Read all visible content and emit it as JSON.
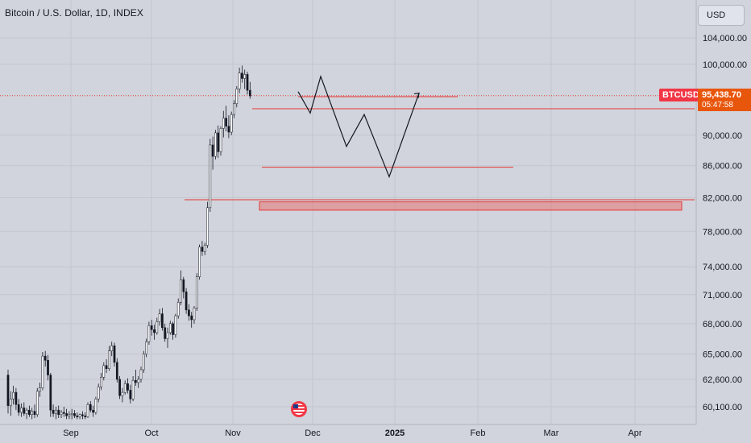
{
  "header": {
    "title": "Bitcoin / U.S. Dollar, 1D, INDEX"
  },
  "currency_button": {
    "label": "USD"
  },
  "price_tag": {
    "ticker": "BTCUSD",
    "price": "95,438.70",
    "countdown": "05:47:58"
  },
  "colors": {
    "background": "#d1d4dc",
    "up": "#ffffff",
    "down": "#131722",
    "line": "#e53935",
    "zone": "#e57373",
    "tag": "#e8560c"
  },
  "price_axis_labels": [
    "104,000.00",
    "100,000.00",
    "90,000.00",
    "86,000.00",
    "82,000.00",
    "78,000.00",
    "74,000.00",
    "71,000.00",
    "68,000.00",
    "65,000.00",
    "62,600.00",
    "60,100.00"
  ],
  "time_axis_labels": [
    "Sep",
    "Oct",
    "Nov",
    "Dec",
    "2025",
    "Feb",
    "Mar",
    "Apr"
  ],
  "icons": {
    "flag": "us-flag-icon"
  },
  "chart_data": {
    "type": "candlestick",
    "title": "Bitcoin / U.S. Dollar, 1D, INDEX",
    "y_axis": {
      "scale": "log",
      "ticks": [
        104000,
        100000,
        90000,
        86000,
        82000,
        78000,
        74000,
        71000,
        68000,
        65000,
        62600,
        60100
      ]
    },
    "x_axis": {
      "ticks": [
        "Sep",
        "Oct",
        "Nov",
        "Dec",
        "2025",
        "Feb",
        "Mar",
        "Apr"
      ]
    },
    "last_price": 95438.7,
    "series": [
      {
        "name": "BTCUSD",
        "ohlc": [
          [
            63000,
            63500,
            59500,
            60200
          ],
          [
            60200,
            61500,
            59300,
            60800
          ],
          [
            60800,
            62000,
            60300,
            61400
          ],
          [
            61400,
            61800,
            59800,
            60300
          ],
          [
            60300,
            60800,
            59300,
            59600
          ],
          [
            59600,
            60400,
            59200,
            60000
          ],
          [
            60000,
            60500,
            59300,
            59500
          ],
          [
            59500,
            60000,
            59000,
            59800
          ],
          [
            59800,
            60200,
            59200,
            59400
          ],
          [
            59400,
            60000,
            59000,
            59700
          ],
          [
            59700,
            60300,
            59100,
            59400
          ],
          [
            59400,
            61800,
            59200,
            61500
          ],
          [
            61500,
            62300,
            61000,
            61800
          ],
          [
            61800,
            65200,
            61600,
            64800
          ],
          [
            64800,
            65300,
            63800,
            64400
          ],
          [
            64400,
            64900,
            62500,
            63000
          ],
          [
            63000,
            63200,
            59200,
            59800
          ],
          [
            59800,
            60300,
            59200,
            59500
          ],
          [
            59500,
            60100,
            59000,
            59800
          ],
          [
            59800,
            60200,
            59100,
            59400
          ],
          [
            59400,
            59800,
            59100,
            59600
          ],
          [
            59600,
            60100,
            59200,
            59500
          ],
          [
            59500,
            59900,
            59000,
            59300
          ],
          [
            59300,
            59700,
            59000,
            59400
          ],
          [
            59400,
            59900,
            59000,
            59500
          ],
          [
            59500,
            59800,
            59100,
            59300
          ],
          [
            59300,
            59600,
            59000,
            59200
          ],
          [
            59200,
            59500,
            59000,
            59400
          ],
          [
            59400,
            59700,
            59000,
            59300
          ],
          [
            59300,
            59600,
            59000,
            59200
          ],
          [
            59200,
            60500,
            59100,
            60300
          ],
          [
            60300,
            60600,
            59600,
            59800
          ],
          [
            59800,
            60200,
            59200,
            59600
          ],
          [
            59600,
            61000,
            59400,
            60800
          ],
          [
            60800,
            62200,
            60500,
            61900
          ],
          [
            61900,
            63200,
            61600,
            62800
          ],
          [
            62800,
            64200,
            62500,
            63900
          ],
          [
            63900,
            64500,
            63200,
            63600
          ],
          [
            63600,
            65800,
            63400,
            65300
          ],
          [
            65300,
            66200,
            64800,
            65800
          ],
          [
            65800,
            66100,
            63800,
            64200
          ],
          [
            64200,
            64600,
            62300,
            62600
          ],
          [
            62600,
            62900,
            60800,
            61100
          ],
          [
            61100,
            61800,
            60500,
            61400
          ],
          [
            61400,
            62500,
            61200,
            62200
          ],
          [
            62200,
            62700,
            61300,
            61600
          ],
          [
            61600,
            62100,
            60400,
            60800
          ],
          [
            60800,
            62900,
            60600,
            62500
          ],
          [
            62500,
            63500,
            62000,
            62300
          ],
          [
            62300,
            62900,
            61800,
            62600
          ],
          [
            62600,
            63800,
            62300,
            63500
          ],
          [
            63500,
            65300,
            63200,
            65000
          ],
          [
            65000,
            66500,
            64700,
            66200
          ],
          [
            66200,
            68200,
            65900,
            67800
          ],
          [
            67800,
            68400,
            66800,
            67400
          ],
          [
            67400,
            67900,
            66400,
            67100
          ],
          [
            67100,
            68600,
            66900,
            68200
          ],
          [
            68200,
            69500,
            67800,
            69000
          ],
          [
            69000,
            69600,
            67300,
            67600
          ],
          [
            67600,
            68000,
            66200,
            66500
          ],
          [
            66500,
            67600,
            65600,
            67100
          ],
          [
            67100,
            68300,
            66900,
            68000
          ],
          [
            68000,
            68200,
            66400,
            66900
          ],
          [
            66900,
            69000,
            66600,
            68800
          ],
          [
            68800,
            70600,
            68500,
            70200
          ],
          [
            70200,
            73600,
            69900,
            72600
          ],
          [
            72600,
            72900,
            70600,
            71300
          ],
          [
            71300,
            71700,
            69000,
            69400
          ],
          [
            69400,
            70000,
            68300,
            68800
          ],
          [
            68800,
            69200,
            67600,
            68400
          ],
          [
            68400,
            69800,
            68000,
            69600
          ],
          [
            69600,
            73300,
            69300,
            72900
          ],
          [
            72900,
            76500,
            72600,
            76200
          ],
          [
            76200,
            76900,
            75200,
            75700
          ],
          [
            75700,
            76700,
            75300,
            76400
          ],
          [
            76400,
            81500,
            76100,
            80800
          ],
          [
            80800,
            89500,
            80300,
            88700
          ],
          [
            88700,
            89800,
            85500,
            87200
          ],
          [
            87200,
            90700,
            86800,
            90300
          ],
          [
            90300,
            91300,
            87000,
            87800
          ],
          [
            87800,
            91200,
            87300,
            90900
          ],
          [
            90900,
            93300,
            89700,
            92300
          ],
          [
            92300,
            94000,
            90500,
            91200
          ],
          [
            91200,
            92700,
            89600,
            90400
          ],
          [
            90400,
            93200,
            90000,
            92800
          ],
          [
            92800,
            94800,
            92300,
            94300
          ],
          [
            94300,
            96800,
            93800,
            96400
          ],
          [
            96400,
            99500,
            95800,
            98700
          ],
          [
            98700,
            99800,
            97300,
            97900
          ],
          [
            97900,
            99200,
            96400,
            98500
          ],
          [
            98500,
            98900,
            95600,
            96200
          ],
          [
            96200,
            97400,
            95000,
            95400
          ]
        ]
      }
    ],
    "horizontal_levels": [
      95438.7,
      93600,
      85800
    ],
    "zone": {
      "from": 80500,
      "to": 81500
    },
    "projection_path": [
      96000,
      93000,
      98200,
      88500,
      92800,
      84600,
      95800
    ]
  }
}
